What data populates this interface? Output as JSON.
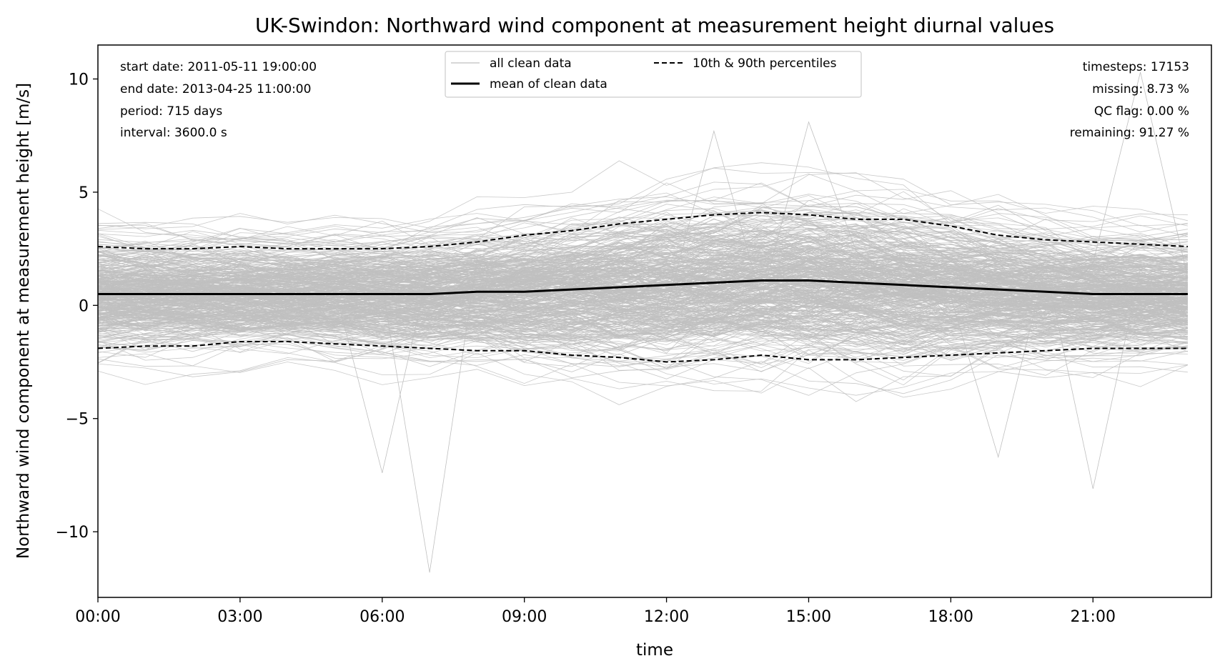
{
  "chart_data": {
    "type": "line",
    "title": "UK-Swindon: Northward wind component at measurement height diurnal values",
    "xlabel": "time",
    "ylabel": "Northward wind component at measurement height [m/s]",
    "xlim": [
      0,
      23.5
    ],
    "ylim": [
      -12.9,
      11.5
    ],
    "x_hours": [
      0,
      1,
      2,
      3,
      4,
      5,
      6,
      7,
      8,
      9,
      10,
      11,
      12,
      13,
      14,
      15,
      16,
      17,
      18,
      19,
      20,
      21,
      22,
      23
    ],
    "x_ticks": [
      {
        "hour": 0,
        "label": "00:00"
      },
      {
        "hour": 3,
        "label": "03:00"
      },
      {
        "hour": 6,
        "label": "06:00"
      },
      {
        "hour": 9,
        "label": "09:00"
      },
      {
        "hour": 12,
        "label": "12:00"
      },
      {
        "hour": 15,
        "label": "15:00"
      },
      {
        "hour": 18,
        "label": "18:00"
      },
      {
        "hour": 21,
        "label": "21:00"
      }
    ],
    "y_ticks": [
      {
        "value": 10,
        "label": "10"
      },
      {
        "value": 5,
        "label": "5"
      },
      {
        "value": 0,
        "label": "0"
      },
      {
        "value": -5,
        "label": "−5"
      },
      {
        "value": -10,
        "label": "−10"
      }
    ],
    "series": [
      {
        "name": "mean of clean data",
        "style": "solid",
        "color": "#000000",
        "values": [
          0.5,
          0.5,
          0.5,
          0.5,
          0.5,
          0.5,
          0.5,
          0.5,
          0.6,
          0.6,
          0.7,
          0.8,
          0.9,
          1.0,
          1.1,
          1.1,
          1.0,
          0.9,
          0.8,
          0.7,
          0.6,
          0.5,
          0.5,
          0.5
        ]
      },
      {
        "name": "10th percentile",
        "style": "dashed",
        "color": "#000000",
        "values": [
          -1.9,
          -1.8,
          -1.8,
          -1.6,
          -1.6,
          -1.7,
          -1.8,
          -1.9,
          -2.0,
          -2.0,
          -2.2,
          -2.3,
          -2.5,
          -2.4,
          -2.2,
          -2.4,
          -2.4,
          -2.3,
          -2.2,
          -2.1,
          -2.0,
          -1.9,
          -1.9,
          -1.9
        ]
      },
      {
        "name": "90th percentile",
        "style": "dashed",
        "color": "#000000",
        "values": [
          2.6,
          2.5,
          2.5,
          2.6,
          2.5,
          2.5,
          2.5,
          2.6,
          2.8,
          3.1,
          3.3,
          3.6,
          3.8,
          4.0,
          4.1,
          4.0,
          3.8,
          3.8,
          3.5,
          3.1,
          2.9,
          2.8,
          2.7,
          2.6
        ]
      }
    ],
    "all_clean_data": {
      "color": "#bfbfbf",
      "approx_range": [
        -11.8,
        10.3
      ],
      "note_spikes": [
        {
          "hour": 7,
          "value": -11.8
        },
        {
          "hour": 6,
          "value": -7.4
        },
        {
          "hour": 22,
          "value": 10.3
        },
        {
          "hour": 21,
          "value": -8.1
        },
        {
          "hour": 19,
          "value": -6.7
        },
        {
          "hour": 15,
          "value": 8.1
        },
        {
          "hour": 13,
          "value": 7.7
        }
      ]
    },
    "legend": {
      "placement": "top-center",
      "entries": [
        {
          "label": "all clean data",
          "style": "thin-gray"
        },
        {
          "label": "10th & 90th percentiles",
          "style": "dashed"
        },
        {
          "label": "mean of clean data",
          "style": "solid"
        }
      ]
    },
    "info_left": [
      "start date: 2011-05-11 19:00:00",
      "end date: 2013-04-25 11:00:00",
      "period: 715 days",
      "interval: 3600.0 s"
    ],
    "info_right": [
      "timesteps: 17153",
      "missing: 8.73 %",
      "QC flag: 0.00 %",
      "remaining: 91.27 %"
    ],
    "grid": false
  }
}
